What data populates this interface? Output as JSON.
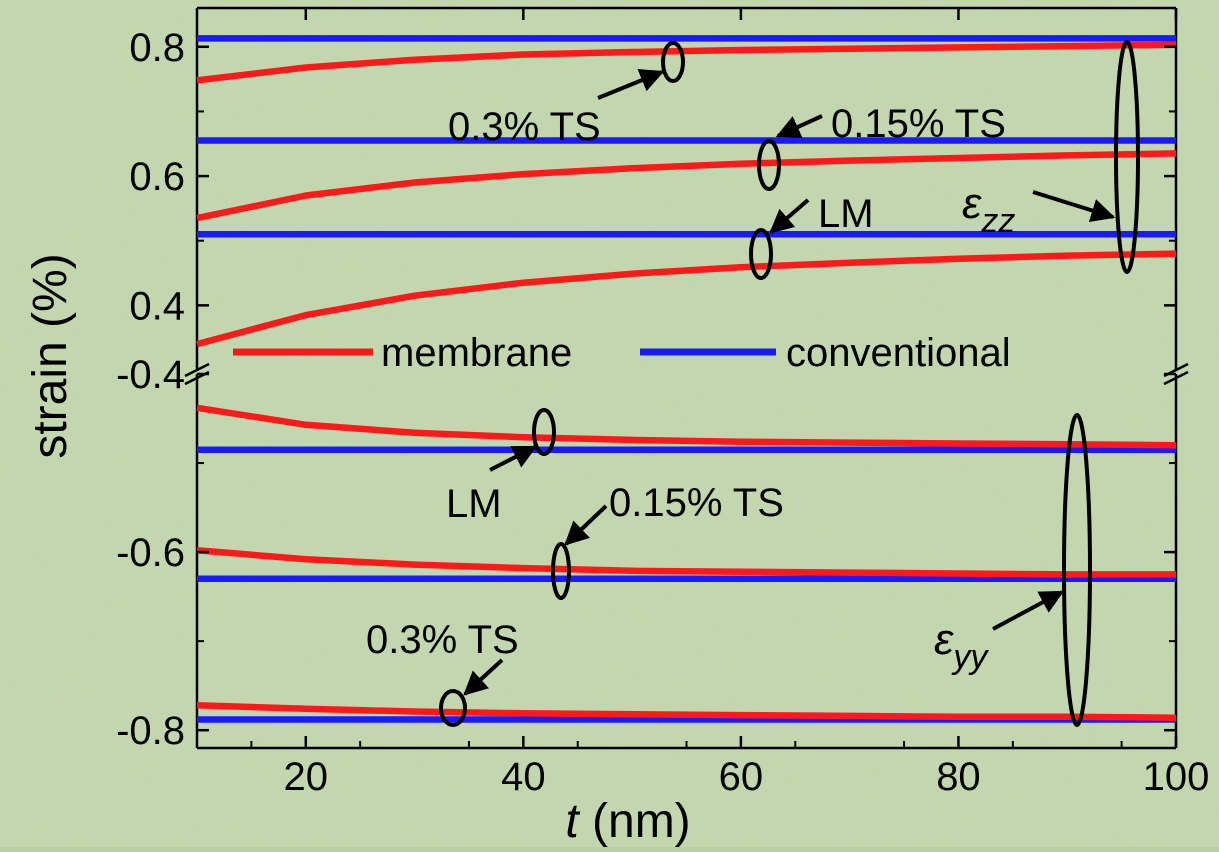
{
  "chart_data": {
    "type": "line",
    "xlabel_var": "t",
    "xlabel_unit": " (nm)",
    "ylabel": "strain (%)",
    "xlim": [
      10,
      100
    ],
    "x_ticks": [
      20,
      40,
      60,
      80,
      100
    ],
    "x_tick_labels": [
      "20",
      "40",
      "60",
      "80",
      "100"
    ],
    "y_upper_lim": [
      0.3,
      0.86
    ],
    "y_upper_ticks": [
      0.4,
      0.6,
      0.8
    ],
    "y_upper_tick_labels": [
      "0.4",
      "0.6",
      "0.8"
    ],
    "y_lower_lim": [
      -0.82,
      -0.4
    ],
    "y_lower_ticks": [
      -0.4,
      -0.6,
      -0.8
    ],
    "y_lower_tick_labels": [
      "-0.4",
      "-0.6",
      "-0.8"
    ],
    "axis_break": true,
    "legend": {
      "placement": "center",
      "entries": [
        {
          "label": "membrane",
          "color": "#ff1a1a"
        },
        {
          "label": "conventional",
          "color": "#1a1aff"
        }
      ]
    },
    "colors": {
      "membrane": "#ff1a1a",
      "conventional": "#1a1aff"
    },
    "series": [
      {
        "panel": "upper",
        "kind": "conventional",
        "x": [
          10,
          100
        ],
        "y": [
          0.813,
          0.813
        ]
      },
      {
        "panel": "upper",
        "kind": "conventional",
        "x": [
          10,
          100
        ],
        "y": [
          0.655,
          0.655
        ]
      },
      {
        "panel": "upper",
        "kind": "conventional",
        "x": [
          10,
          100
        ],
        "y": [
          0.51,
          0.51
        ]
      },
      {
        "panel": "upper",
        "kind": "membrane",
        "x": [
          10,
          20,
          30,
          40,
          50,
          60,
          70,
          80,
          90,
          100
        ],
        "y": [
          0.748,
          0.768,
          0.78,
          0.788,
          0.792,
          0.795,
          0.797,
          0.799,
          0.801,
          0.803
        ]
      },
      {
        "panel": "upper",
        "kind": "membrane",
        "x": [
          10,
          20,
          30,
          40,
          50,
          60,
          70,
          80,
          90,
          100
        ],
        "y": [
          0.535,
          0.57,
          0.59,
          0.603,
          0.612,
          0.619,
          0.624,
          0.628,
          0.632,
          0.635
        ]
      },
      {
        "panel": "upper",
        "kind": "membrane",
        "x": [
          10,
          20,
          30,
          40,
          50,
          60,
          70,
          80,
          90,
          100
        ],
        "y": [
          0.34,
          0.385,
          0.415,
          0.435,
          0.449,
          0.459,
          0.466,
          0.472,
          0.477,
          0.48
        ]
      },
      {
        "panel": "lower",
        "kind": "conventional",
        "x": [
          10,
          100
        ],
        "y": [
          -0.485,
          -0.485
        ]
      },
      {
        "panel": "lower",
        "kind": "conventional",
        "x": [
          10,
          100
        ],
        "y": [
          -0.63,
          -0.63
        ]
      },
      {
        "panel": "lower",
        "kind": "conventional",
        "x": [
          10,
          100
        ],
        "y": [
          -0.788,
          -0.788
        ]
      },
      {
        "panel": "lower",
        "kind": "membrane",
        "x": [
          10,
          20,
          30,
          40,
          50,
          60,
          70,
          80,
          90,
          100
        ],
        "y": [
          -0.438,
          -0.457,
          -0.466,
          -0.471,
          -0.474,
          -0.476,
          -0.477,
          -0.478,
          -0.479,
          -0.48
        ]
      },
      {
        "panel": "lower",
        "kind": "membrane",
        "x": [
          10,
          20,
          30,
          40,
          50,
          60,
          70,
          80,
          90,
          100
        ],
        "y": [
          -0.598,
          -0.608,
          -0.614,
          -0.618,
          -0.621,
          -0.622,
          -0.623,
          -0.624,
          -0.625,
          -0.625
        ]
      },
      {
        "panel": "lower",
        "kind": "membrane",
        "x": [
          10,
          20,
          30,
          40,
          50,
          60,
          70,
          80,
          90,
          100
        ],
        "y": [
          -0.772,
          -0.776,
          -0.779,
          -0.781,
          -0.782,
          -0.783,
          -0.784,
          -0.785,
          -0.785,
          -0.786
        ]
      }
    ],
    "annotations": {
      "upper_ts03": "0.3% TS",
      "upper_ts015": "0.15% TS",
      "upper_lm": "LM",
      "ezz_sym": "ε",
      "ezz_sub": "zz",
      "lower_lm": "LM",
      "lower_ts015": "0.15% TS",
      "lower_ts03": "0.3% TS",
      "eyy_sym": "ε",
      "eyy_sub": "yy"
    }
  }
}
